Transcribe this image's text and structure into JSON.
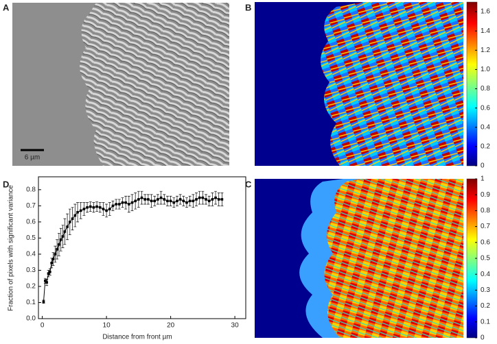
{
  "panel_labels": [
    "A",
    "B",
    "C",
    "D"
  ],
  "scale_bar": "6 µm",
  "colorbars": [
    {
      "range": [
        0,
        1.7
      ],
      "ticks": [
        {
          "value": 0,
          "label": "0"
        },
        {
          "value": 0.2,
          "label": "0.2"
        },
        {
          "value": 0.4,
          "label": "0.4"
        },
        {
          "value": 0.6,
          "label": "0.6"
        },
        {
          "value": 0.8,
          "label": "0.8"
        },
        {
          "value": 1.0,
          "label": "1.0"
        },
        {
          "value": 1.2,
          "label": "1.2"
        },
        {
          "value": 1.4,
          "label": "1.4"
        },
        {
          "value": 1.6,
          "label": "1.6"
        }
      ]
    },
    {
      "range": [
        0,
        1
      ],
      "ticks": [
        0,
        0.1,
        0.2,
        0.3,
        0.4,
        0.5,
        0.6,
        0.7,
        0.8,
        0.9,
        1
      ]
    }
  ],
  "chart_data": {
    "type": "line",
    "xlabel": "Distance from front µm",
    "ylabel": "Fraction of pixels with significant variance",
    "color": "#000000",
    "x": [
      0.2,
      0.45,
      0.7,
      0.95,
      1.2,
      1.45,
      1.7,
      2.0,
      2.3,
      2.6,
      2.9,
      3.2,
      3.5,
      3.9,
      4.3,
      4.7,
      5.1,
      5.5,
      6.0,
      6.5,
      7.0,
      7.5,
      8.0,
      8.5,
      9.0,
      9.5,
      10.0,
      10.5,
      11.0,
      11.5,
      12.0,
      12.5,
      13.0,
      13.5,
      14.0,
      14.5,
      15.0,
      15.5,
      16.0,
      16.5,
      17.0,
      17.5,
      18.0,
      18.5,
      19.0,
      19.5,
      20.0,
      20.5,
      21.0,
      21.5,
      22.0,
      22.5,
      23.0,
      23.5,
      24.0,
      24.5,
      25.0,
      25.5,
      26.0,
      26.5,
      27.0,
      27.5,
      28.0
    ],
    "values": [
      0.105,
      0.235,
      0.225,
      0.28,
      0.29,
      0.345,
      0.37,
      0.4,
      0.43,
      0.46,
      0.49,
      0.51,
      0.54,
      0.57,
      0.6,
      0.62,
      0.64,
      0.66,
      0.67,
      0.68,
      0.69,
      0.695,
      0.69,
      0.695,
      0.69,
      0.68,
      0.67,
      0.68,
      0.7,
      0.71,
      0.71,
      0.72,
      0.72,
      0.71,
      0.72,
      0.73,
      0.74,
      0.75,
      0.74,
      0.74,
      0.73,
      0.73,
      0.74,
      0.75,
      0.74,
      0.73,
      0.73,
      0.72,
      0.73,
      0.74,
      0.73,
      0.72,
      0.73,
      0.73,
      0.74,
      0.75,
      0.75,
      0.74,
      0.73,
      0.74,
      0.75,
      0.74,
      0.74
    ],
    "errors": [
      0.01,
      0.015,
      0.02,
      0.02,
      0.02,
      0.03,
      0.04,
      0.05,
      0.06,
      0.07,
      0.07,
      0.07,
      0.08,
      0.08,
      0.08,
      0.07,
      0.07,
      0.06,
      0.05,
      0.04,
      0.03,
      0.03,
      0.03,
      0.03,
      0.03,
      0.04,
      0.04,
      0.04,
      0.03,
      0.03,
      0.03,
      0.03,
      0.04,
      0.05,
      0.05,
      0.05,
      0.05,
      0.04,
      0.03,
      0.03,
      0.04,
      0.03,
      0.03,
      0.04,
      0.03,
      0.03,
      0.03,
      0.03,
      0.03,
      0.03,
      0.03,
      0.03,
      0.03,
      0.04,
      0.04,
      0.04,
      0.04,
      0.03,
      0.03,
      0.04,
      0.04,
      0.04,
      0.04
    ],
    "xlim": [
      -0.6,
      31.7
    ],
    "ylim": [
      0,
      0.88
    ],
    "xticks": [
      0,
      10,
      20,
      30
    ],
    "yticks": [
      {
        "value": 0,
        "label": "0.0"
      },
      0.1,
      0.2,
      0.3,
      0.4,
      0.5,
      0.6,
      0.7,
      0.8
    ]
  }
}
